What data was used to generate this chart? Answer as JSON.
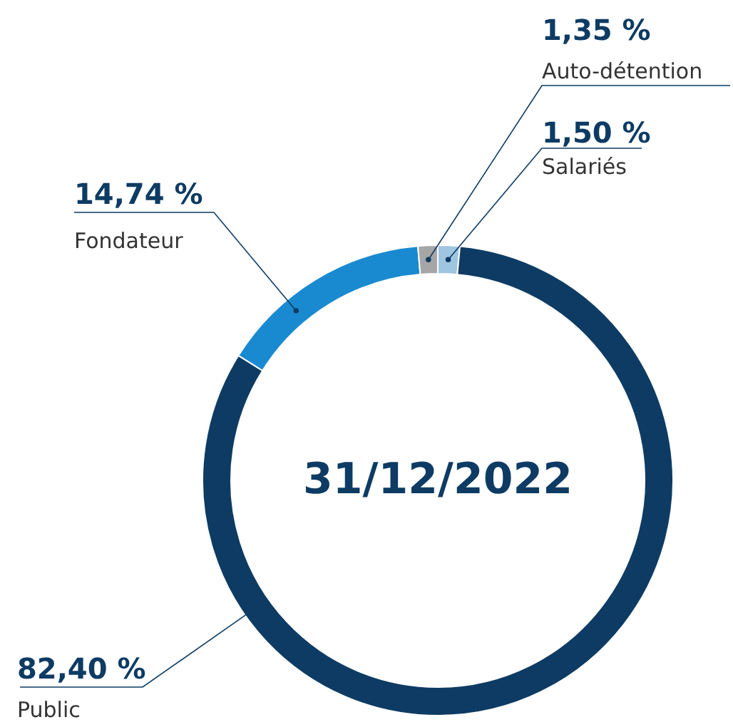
{
  "chart_data": {
    "type": "donut",
    "categories": [
      "Salariés",
      "Public",
      "Fondateur",
      "Auto-détention"
    ],
    "values": [
      1.5,
      82.4,
      14.74,
      1.35
    ],
    "colors": [
      "#9fc5e0",
      "#0d3b63",
      "#1a8ad0",
      "#a6a6a6"
    ],
    "value_labels": [
      "1,50 %",
      "82,40 %",
      "14,74 %",
      "1,35 %"
    ],
    "annotations": [
      "31/12/2022"
    ]
  }
}
